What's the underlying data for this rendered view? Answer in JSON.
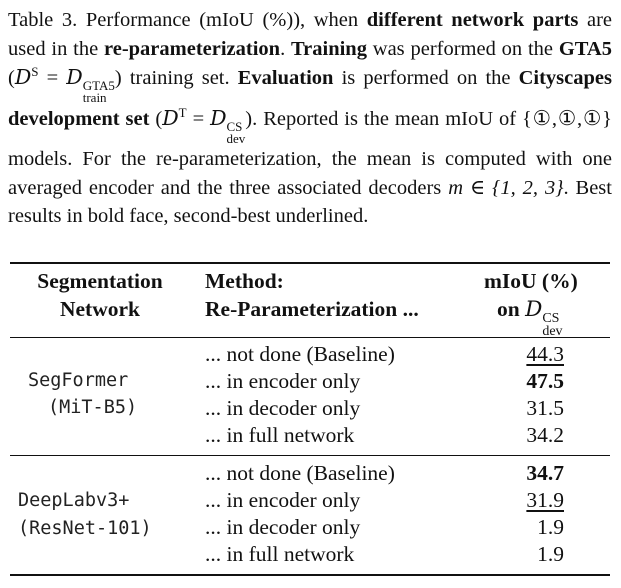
{
  "caption": {
    "label": "Table 3.",
    "t1": " Performance (mIoU (%)), when ",
    "b1": "different network parts",
    "t2": " are used in the ",
    "b2": "re-parameterization",
    "t3": ". ",
    "b3": "Training",
    "t4": " was performed on the ",
    "b4": "GTA5",
    "t5": " (",
    "d_sym": "D",
    "d_sup_S": "S",
    "eq": " = ",
    "d_sup_gta": "GTA5",
    "d_sub_train": "train",
    "t6": ") training set. ",
    "b5": "Evaluation",
    "t7": " is performed on the ",
    "b6": "Cityscapes development set",
    "t8": " (",
    "d_sup_T": "T",
    "d_sup_cs": "CS",
    "d_sub_dev": "dev",
    "t9": "). Reported is the mean mIoU of {①,①,①} models. For the re-parameterization, the mean is computed with one averaged encoder and the three associated decoders ",
    "m_expr": "m ∈ {1, 2, 3}",
    "t10": ". Best results in bold face, second-best underlined."
  },
  "table": {
    "header": {
      "col1_line1": "Segmentation",
      "col1_line2": "Network",
      "col2_line1": "Method:",
      "col2_line2": "Re-Parameterization ...",
      "col3_line1": "mIoU (%)",
      "col3_line2": "on",
      "col3_sym": "D",
      "col3_sup": "CS",
      "col3_sub": "dev"
    },
    "groups": [
      {
        "network": "SegFormer",
        "backbone": "(MiT-B5)",
        "rows": [
          {
            "method": "... not done (Baseline)",
            "value": "44.3",
            "style": "underline"
          },
          {
            "method": "... in encoder only",
            "value": "47.5",
            "style": "bold"
          },
          {
            "method": "... in decoder only",
            "value": "31.5",
            "style": ""
          },
          {
            "method": "... in full network",
            "value": "34.2",
            "style": ""
          }
        ]
      },
      {
        "network": "DeepLabv3+",
        "backbone": "(ResNet-101)",
        "rows": [
          {
            "method": "... not done (Baseline)",
            "value": "34.7",
            "style": "bold"
          },
          {
            "method": "... in encoder only",
            "value": "31.9",
            "style": "underline"
          },
          {
            "method": "... in decoder only",
            "value": "1.9",
            "style": ""
          },
          {
            "method": "... in full network",
            "value": "1.9",
            "style": ""
          }
        ]
      }
    ]
  }
}
